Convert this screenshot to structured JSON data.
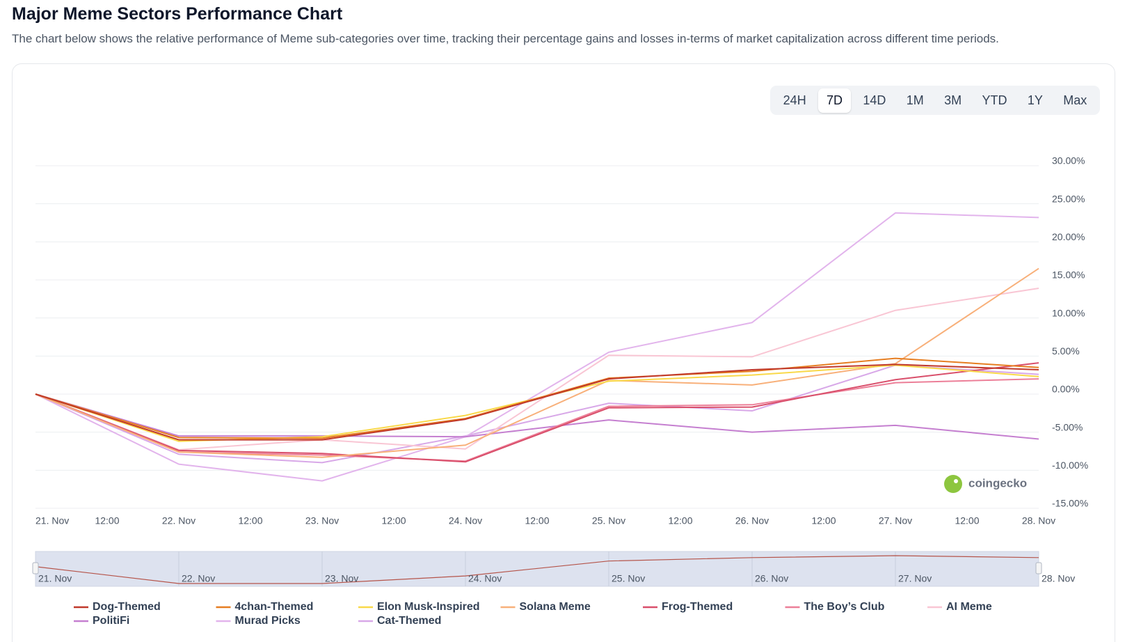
{
  "header": {
    "title": "Major Meme Sectors Performance Chart",
    "subtitle": "The chart below shows the relative performance of Meme sub-categories over time, tracking their percentage gains and losses in-terms of market capitalization across different time periods."
  },
  "range_buttons": {
    "options": [
      "24H",
      "7D",
      "14D",
      "1M",
      "3M",
      "YTD",
      "1Y",
      "Max"
    ],
    "selected": "7D"
  },
  "watermark": "coingecko",
  "chart_data": {
    "type": "line",
    "xticks": [
      "21. Nov",
      "12:00",
      "22. Nov",
      "12:00",
      "23. Nov",
      "12:00",
      "24. Nov",
      "12:00",
      "25. Nov",
      "12:00",
      "26. Nov",
      "12:00",
      "27. Nov",
      "12:00",
      "28. Nov"
    ],
    "ylim": [
      -15,
      30
    ],
    "yticks": [
      {
        "value": -15,
        "label": "-15.00%"
      },
      {
        "value": -10,
        "label": "-10.00%"
      },
      {
        "value": -5,
        "label": "-5.00%"
      },
      {
        "value": 0,
        "label": "0.00%"
      },
      {
        "value": 5,
        "label": "5.00%"
      },
      {
        "value": 10,
        "label": "10.00%"
      },
      {
        "value": 15,
        "label": "15.00%"
      },
      {
        "value": 20,
        "label": "20.00%"
      },
      {
        "value": 25,
        "label": "25.00%"
      },
      {
        "value": 30,
        "label": "30.00%"
      }
    ],
    "grid": true,
    "series": [
      {
        "name": "Dog-Themed",
        "color": "#c0392b",
        "values": [
          0,
          -6.0,
          -6.0,
          -3.3,
          2.0,
          3.2,
          3.9,
          3.2
        ]
      },
      {
        "name": "4chan-Themed",
        "color": "#e67e22",
        "values": [
          0,
          -5.7,
          -5.8,
          -3.2,
          2.1,
          3.0,
          4.7,
          3.5
        ]
      },
      {
        "name": "Elon Musk-Inspired",
        "color": "#f9d94a",
        "values": [
          0,
          -6.2,
          -5.6,
          -2.8,
          1.7,
          2.5,
          3.8,
          2.3
        ]
      },
      {
        "name": "Solana Meme",
        "color": "#f8b07a",
        "values": [
          0,
          -7.6,
          -8.3,
          -6.7,
          1.8,
          1.2,
          4.0,
          16.5
        ]
      },
      {
        "name": "Frog-Themed",
        "color": "#d94f6b",
        "values": [
          0,
          -7.4,
          -7.8,
          -8.9,
          -1.8,
          -1.7,
          1.9,
          4.1
        ]
      },
      {
        "name": "The Boy’s Club",
        "color": "#ec7f98",
        "values": [
          0,
          -7.6,
          -8.0,
          -8.8,
          -1.6,
          -1.4,
          1.5,
          2.0
        ]
      },
      {
        "name": "AI Meme",
        "color": "#f9c6d4",
        "values": [
          0,
          -7.3,
          -6.0,
          -7.2,
          5.1,
          4.9,
          11.0,
          13.9
        ]
      },
      {
        "name": "PolitiFi",
        "color": "#c57fd0",
        "values": [
          0,
          -5.5,
          -5.5,
          -5.6,
          -3.4,
          -5.0,
          -4.1,
          -5.9
        ]
      },
      {
        "name": "Murad Picks",
        "color": "#e2b4ec",
        "values": [
          0,
          -9.2,
          -11.4,
          -5.6,
          5.5,
          9.4,
          23.8,
          23.2
        ]
      },
      {
        "name": "Cat-Themed",
        "color": "#d8a8e8",
        "values": [
          0,
          -7.9,
          -9.0,
          -5.5,
          -1.2,
          -2.2,
          3.8,
          2.6
        ]
      }
    ]
  }
}
